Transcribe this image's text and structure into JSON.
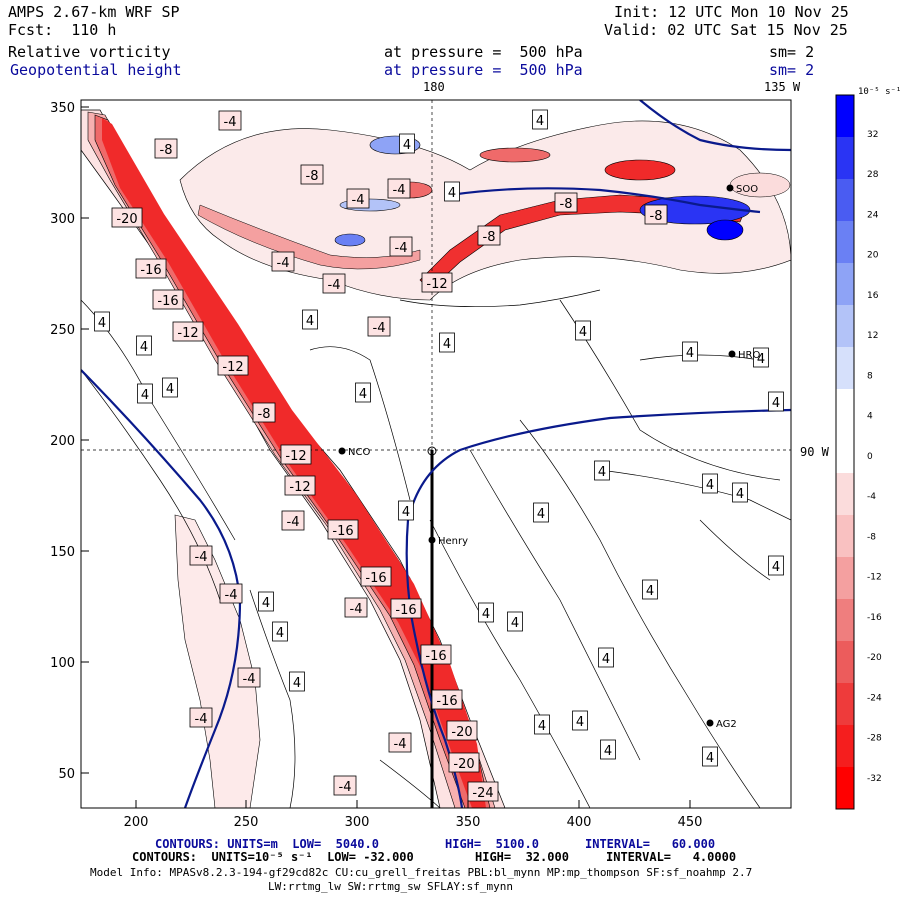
{
  "header": {
    "model": "AMPS 2.67-km WRF SP",
    "init": "Init: 12 UTC Mon 10 Nov 25",
    "fcst": "Fcst:  110 h",
    "valid": "Valid: 02 UTC Sat 15 Nov 25",
    "field1": "Relative vorticity",
    "field1_level": "at pressure =  500 hPa",
    "field1_sm": "sm= 2",
    "field2": "Geopotential height",
    "field2_level": "at pressure =  500 hPa",
    "field2_sm": "sm= 2"
  },
  "map": {
    "top_lon_label": "180",
    "top_right_lon_label": "135 W",
    "right_lat_label": "90 W",
    "x_ticks": [
      "200",
      "250",
      "300",
      "350",
      "400",
      "450"
    ],
    "y_ticks": [
      "350",
      "300",
      "250",
      "200",
      "150",
      "100",
      "50"
    ],
    "stations": [
      {
        "name": "NCO"
      },
      {
        "name": "Henry"
      },
      {
        "name": "HRO"
      },
      {
        "name": "AG2"
      },
      {
        "name": "SOO"
      }
    ],
    "contour_labels_positive": [
      "4",
      "4",
      "4",
      "4",
      "4",
      "4",
      "4",
      "4",
      "4",
      "4",
      "4",
      "4",
      "4",
      "4",
      "4",
      "4",
      "4",
      "4",
      "4",
      "4",
      "4",
      "4",
      "4",
      "4",
      "4",
      "4",
      "4",
      "4",
      "4",
      "4",
      "4"
    ],
    "contour_labels_negative": [
      "-4",
      "-8",
      "-20",
      "-16",
      "-16",
      "-12",
      "-12",
      "-8",
      "-12",
      "-12",
      "-4",
      "-16",
      "-16",
      "-16",
      "-4",
      "-16",
      "-16",
      "-20",
      "-20",
      "-24",
      "-4",
      "-4",
      "-4",
      "-4",
      "-4",
      "-4",
      "-4",
      "-4",
      "-8",
      "-8",
      "-8",
      "-4",
      "-4",
      "-12",
      "-8",
      "-4",
      "-4"
    ]
  },
  "colorbar": {
    "unit": "10⁻⁵ s⁻¹",
    "labels": [
      "32",
      "28",
      "24",
      "20",
      "16",
      "12",
      "8",
      "4",
      "0",
      "-4",
      "-8",
      "-12",
      "-16",
      "-20",
      "-24",
      "-28",
      "-32"
    ],
    "colors": [
      "#0000ff",
      "#2a34f4",
      "#4a5cf2",
      "#6a80f4",
      "#8ea3f6",
      "#b3c3f8",
      "#d6e0fb",
      "#ffffff",
      "#ffffff",
      "#fbdcdc",
      "#f9c1c1",
      "#f4a0a0",
      "#ef7e7e",
      "#ec5c5c",
      "#ee3b3b",
      "#f51e1e",
      "#ff0000"
    ]
  },
  "footer": {
    "contours1_a": "CONTOURS: UNITS=m  LOW=  5040.0",
    "contours1_b": "HIGH=  5100.0",
    "contours1_c": "INTERVAL=   60.000",
    "contours2_a": "CONTOURS:  UNITS=10⁻⁵ s⁻¹  LOW= -32.000",
    "contours2_b": "HIGH=  32.000",
    "contours2_c": "INTERVAL=   4.0000",
    "model_info": "Model Info: MPASv8.2.3-194-gf29cd82c CU:cu_grell_freitas PBL:bl_mynn MP:mp_thompson SF:sf_noahmp 2.7",
    "model_info2": "LW:rrtmg_lw SW:rrtmg_sw SFLAY:sf_mynn"
  }
}
